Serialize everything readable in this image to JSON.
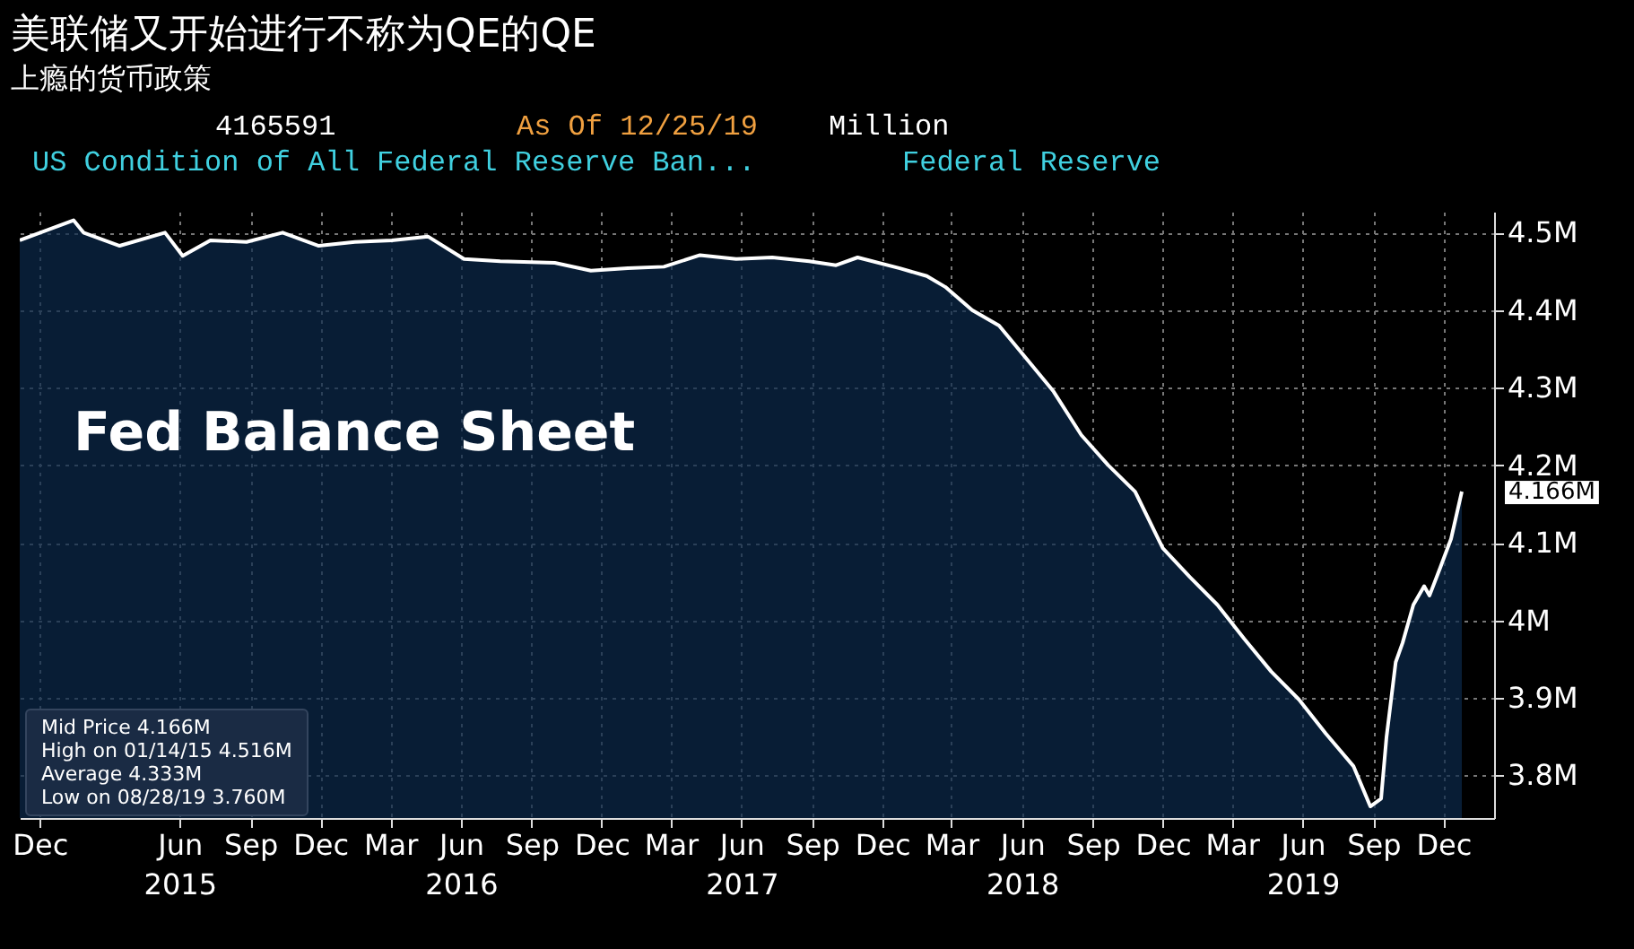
{
  "chart_data": {
    "type": "area",
    "title": "美联储又开始进行不称为QE的QE",
    "subtitle": "上瘾的货币政策",
    "annotations": [
      "4165591",
      "As Of 12/25/19",
      "Million",
      "US Condition of All Federal Reserve Ban...",
      "Federal Reserve",
      "Fed Balance Sheet",
      "Mid Price 4.166M",
      "High on 01/14/15 4.516M",
      "Average 4.333M",
      "Low on 08/28/19 3.760M",
      {
        "text": "4.166M",
        "x": "2019-12-25",
        "y": 4.166
      }
    ],
    "x": [
      "2014-11-05",
      "2015-01-14",
      "2015-01-27",
      "2015-03-15",
      "2015-05-13",
      "2015-06-05",
      "2015-07-11",
      "2015-08-27",
      "2015-10-13",
      "2015-11-29",
      "2016-01-15",
      "2016-03-03",
      "2016-04-19",
      "2016-06-05",
      "2016-07-22",
      "2016-10-01",
      "2016-11-17",
      "2017-01-04",
      "2017-02-20",
      "2017-04-08",
      "2017-05-25",
      "2017-07-11",
      "2017-08-28",
      "2017-10-02",
      "2017-10-30",
      "2017-12-24",
      "2018-01-28",
      "2018-02-21",
      "2018-03-28",
      "2018-05-02",
      "2018-06-07",
      "2018-07-12",
      "2018-08-17",
      "2018-09-21",
      "2018-10-26",
      "2018-12-01",
      "2019-01-05",
      "2019-02-10",
      "2019-03-17",
      "2019-04-21",
      "2019-05-27",
      "2019-07-01",
      "2019-08-06",
      "2019-08-28",
      "2019-09-11",
      "2019-09-18",
      "2019-09-30",
      "2019-10-09",
      "2019-10-23",
      "2019-11-06",
      "2019-11-13",
      "2019-11-27",
      "2019-12-11",
      "2019-12-25"
    ],
    "series": [
      {
        "color": "#0b2a4c",
        "values": [
          4.49,
          4.516,
          4.5,
          4.483,
          4.5,
          4.47,
          4.49,
          4.488,
          4.5,
          4.483,
          4.488,
          4.49,
          4.495,
          4.466,
          4.463,
          4.461,
          4.451,
          4.454,
          4.456,
          4.471,
          4.466,
          4.468,
          4.463,
          4.458,
          4.468,
          4.454,
          4.444,
          4.43,
          4.4,
          4.38,
          4.337,
          4.295,
          4.239,
          4.2,
          4.166,
          4.093,
          4.056,
          4.02,
          3.976,
          3.934,
          3.898,
          3.854,
          3.812,
          3.76,
          3.77,
          3.849,
          3.946,
          3.971,
          4.02,
          4.044,
          4.032,
          4.068,
          4.105,
          4.166
        ]
      }
    ],
    "xlim": [
      "2014-11-05",
      "2020-02-05"
    ],
    "xticks": [
      {
        "value": "2014-12-01",
        "label": "Dec"
      },
      {
        "value": "2015-06-01",
        "label": "Jun\n2015"
      },
      {
        "value": "2015-09-01",
        "label": "Sep"
      },
      {
        "value": "2015-12-01",
        "label": "Dec"
      },
      {
        "value": "2016-03-01",
        "label": "Mar"
      },
      {
        "value": "2016-06-01",
        "label": "Jun\n2016"
      },
      {
        "value": "2016-09-01",
        "label": "Sep"
      },
      {
        "value": "2016-12-01",
        "label": "Dec"
      },
      {
        "value": "2017-03-01",
        "label": "Mar"
      },
      {
        "value": "2017-06-01",
        "label": "Jun\n2017"
      },
      {
        "value": "2017-09-01",
        "label": "Sep"
      },
      {
        "value": "2017-12-01",
        "label": "Dec"
      },
      {
        "value": "2018-03-01",
        "label": "Mar"
      },
      {
        "value": "2018-06-01",
        "label": "Jun\n2018"
      },
      {
        "value": "2018-09-01",
        "label": "Sep"
      },
      {
        "value": "2018-12-01",
        "label": "Dec"
      },
      {
        "value": "2019-03-01",
        "label": "Mar"
      },
      {
        "value": "2019-06-01",
        "label": "Jun\n2019"
      },
      {
        "value": "2019-09-01",
        "label": "Sep"
      },
      {
        "value": "2019-12-01",
        "label": "Dec"
      }
    ],
    "ylim": [
      3.745,
      4.527
    ],
    "yticks": [
      {
        "value": 3.8,
        "label": "3.8M"
      },
      {
        "value": 3.9,
        "label": "3.9M"
      },
      {
        "value": 4.0,
        "label": "4M"
      },
      {
        "value": 4.1,
        "label": "4.1M"
      },
      {
        "value": 4.2,
        "label": "4.2M"
      },
      {
        "value": 4.3,
        "label": "4.3M"
      },
      {
        "value": 4.4,
        "label": "4.4M"
      },
      {
        "value": 4.5,
        "label": "4.5M"
      }
    ],
    "grid": true
  }
}
